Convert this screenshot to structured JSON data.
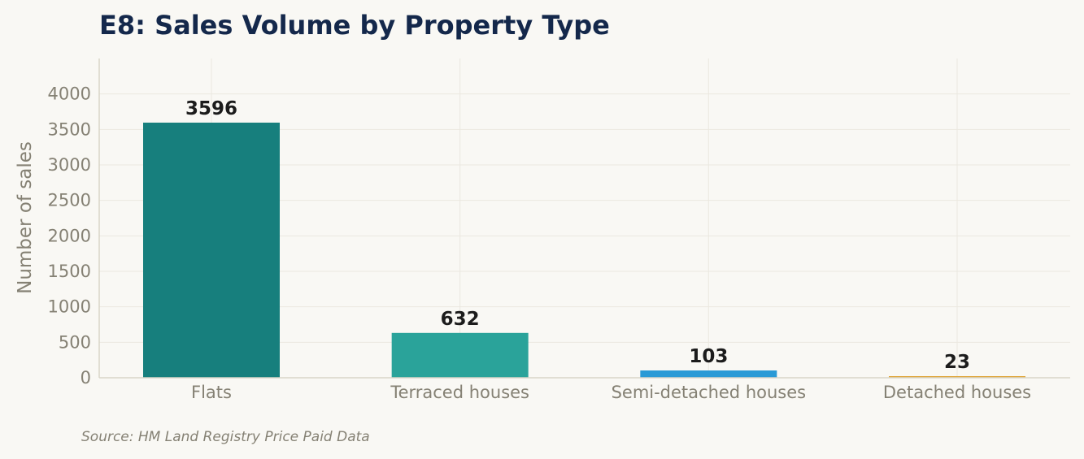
{
  "chart_data": {
    "type": "bar",
    "title": "E8: Sales Volume by Property Type",
    "xlabel": "",
    "ylabel": "Number of sales",
    "categories": [
      "Flats",
      "Terraced houses",
      "Semi-detached houses",
      "Detached houses"
    ],
    "values": [
      3596,
      632,
      103,
      23
    ],
    "data_labels": [
      "3596",
      "632",
      "103",
      "23"
    ],
    "bar_colors": [
      "#177f7d",
      "#2aa39a",
      "#2a9ad6",
      "#e0a63a"
    ],
    "ylim": [
      0,
      4500
    ],
    "yticks": [
      0,
      500,
      1000,
      1500,
      2000,
      2500,
      3000,
      3500,
      4000
    ],
    "ytick_labels": [
      "0",
      "500",
      "1000",
      "1500",
      "2000",
      "2500",
      "3000",
      "3500",
      "4000"
    ],
    "grid": true,
    "legend": "none"
  },
  "footer": {
    "source": "Source: HM Land Registry Price Paid Data"
  }
}
